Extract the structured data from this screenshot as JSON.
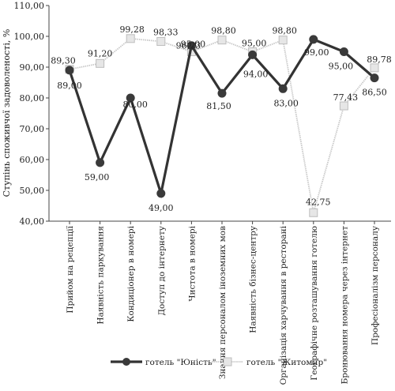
{
  "chart_data": {
    "type": "line",
    "ylabel": "Ступінь споживчої задоволеності, %",
    "ylim": [
      40,
      110
    ],
    "yticks": [
      "40,00",
      "50,00",
      "60,00",
      "70,00",
      "80,00",
      "90,00",
      "100,00",
      "110,00"
    ],
    "ytick_values": [
      40,
      50,
      60,
      70,
      80,
      90,
      100,
      110
    ],
    "grid": false,
    "legend_position": "bottom",
    "categories": [
      "Прийом на рецепції",
      "Наявність паркування",
      "Кондиціонер в номері",
      "Доступ до інтернету",
      "Чистота в номері",
      "Знання персоналом іноземних мов",
      "Наявність бізнес-центру",
      "Організація харчування в ресторані",
      "Географічне розташування готелю",
      "Бронювання номера через інтернет",
      "Професіоналізм персоналу"
    ],
    "series": [
      {
        "name": "готель \"Юність\"",
        "color": "#333333",
        "values": [
          89.0,
          59.0,
          80.0,
          49.0,
          97.0,
          81.5,
          94.0,
          83.0,
          99.0,
          95.0,
          86.5
        ],
        "labels": [
          "89,00",
          "59,00",
          "80,00",
          "49,00",
          "",
          "81,50",
          "94,00",
          "83,00",
          "99,00",
          "95,00",
          "86,50"
        ]
      },
      {
        "name": "готель \"Житомир\"",
        "color": "#c8c8c8",
        "values": [
          89.3,
          91.2,
          99.28,
          98.33,
          95.0,
          98.8,
          95.0,
          98.8,
          42.75,
          77.43,
          89.78
        ],
        "labels": [
          "89,30",
          "91,20",
          "99,28",
          "98,33",
          "95,00",
          "98,80",
          "95,00",
          "98,80",
          "42,75",
          "77,43",
          "89,78"
        ]
      }
    ],
    "extra_labels": [
      "96,23"
    ]
  }
}
